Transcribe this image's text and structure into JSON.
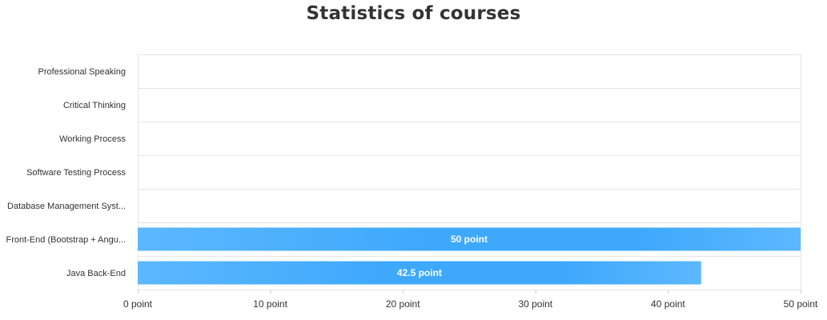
{
  "chart_data": {
    "type": "bar",
    "orientation": "horizontal",
    "title": "Statistics of courses",
    "categories": [
      "Professional Speaking",
      "Critical Thinking",
      "Working Process",
      "Software Testing Process",
      "Database Management Syst...",
      "Front-End (Bootstrap + Angu...",
      "Java Back-End"
    ],
    "values": [
      null,
      null,
      null,
      null,
      null,
      50,
      42.5
    ],
    "data_labels": [
      "",
      "",
      "",
      "",
      "",
      "50 point",
      "42.5 point"
    ],
    "x_ticks": [
      "0 point",
      "10 point",
      "20 point",
      "30 point",
      "40 point",
      "50 point"
    ],
    "xlim": [
      0,
      50
    ],
    "grid": true,
    "legend": "none",
    "colors": {
      "bar_edge": "#5cb8ff",
      "bar_mid": "#3ea8fb",
      "grid": "#e6e6e6",
      "text": "#333333"
    }
  }
}
